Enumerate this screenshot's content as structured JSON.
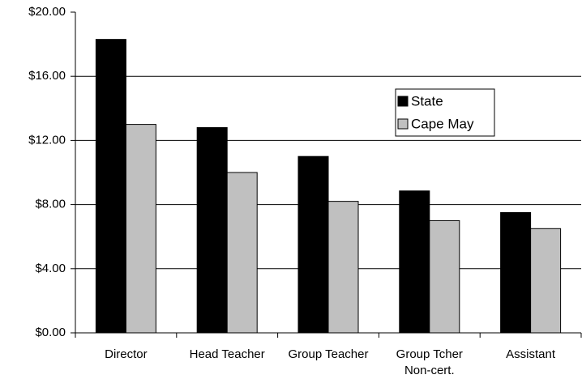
{
  "chart_data": {
    "type": "bar",
    "categories": [
      "Director",
      "Head Teacher",
      "Group Teacher",
      "Group Tcher Non-cert.",
      "Assistant"
    ],
    "series": [
      {
        "name": "State",
        "color": "#000000",
        "values": [
          18.3,
          12.8,
          11.0,
          8.85,
          7.5
        ]
      },
      {
        "name": "Cape May",
        "color": "#c0c0c0",
        "values": [
          13.0,
          10.0,
          8.2,
          7.0,
          6.5
        ]
      }
    ],
    "ylim": [
      0,
      20
    ],
    "yticks": [
      {
        "value": 0,
        "label": "$0.00"
      },
      {
        "value": 4,
        "label": "$4.00"
      },
      {
        "value": 8,
        "label": "$8.00"
      },
      {
        "value": 12,
        "label": "$12.00"
      },
      {
        "value": 16,
        "label": "$16.00"
      },
      {
        "value": 20,
        "label": "$20.00"
      }
    ],
    "grid": true,
    "legend": "upper right"
  }
}
